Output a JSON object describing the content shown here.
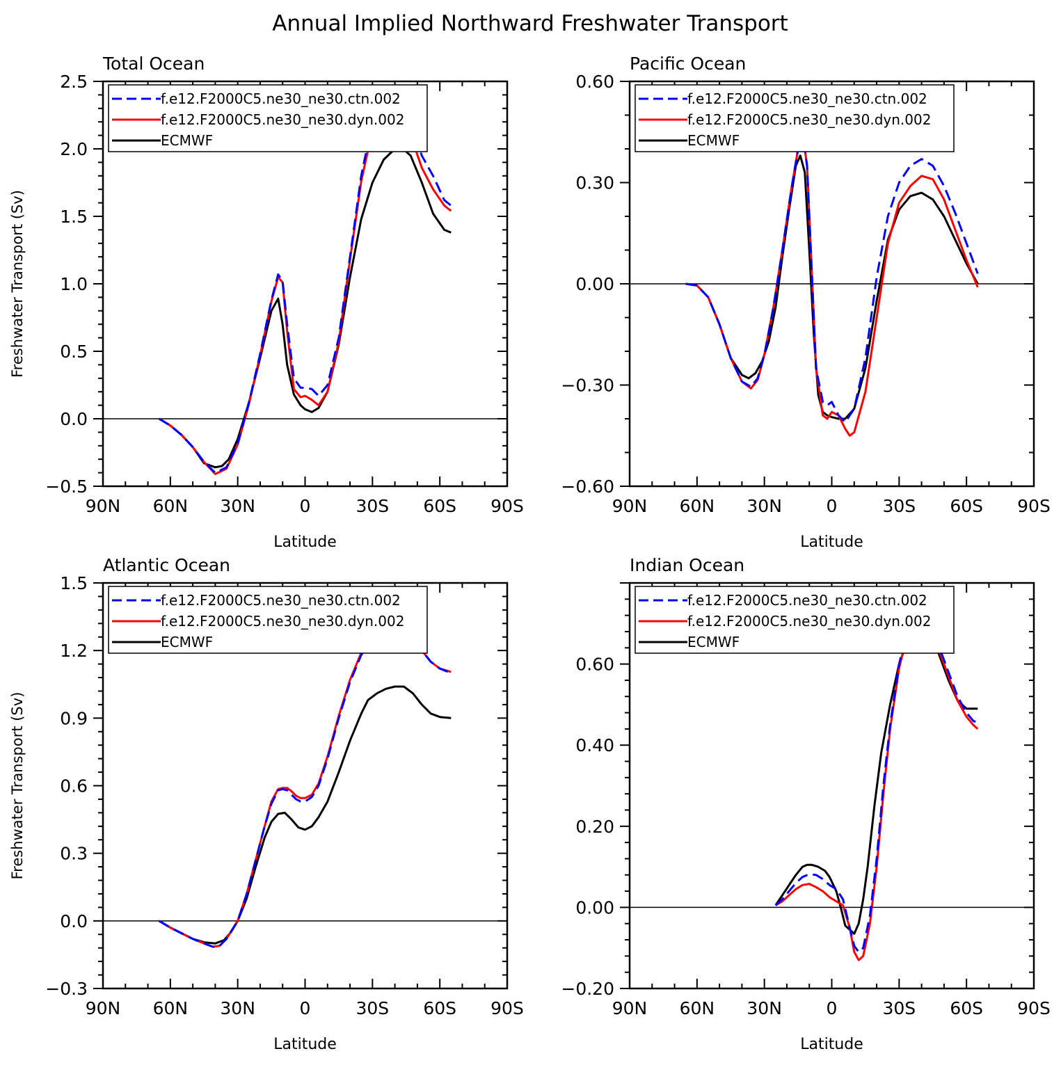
{
  "page_title": "Annual Implied Northward Freshwater Transport",
  "chart_data": [
    {
      "type": "line",
      "title": "Total Ocean",
      "xlabel": "Latitude",
      "ylabel": "Freshwater Transport (Sv)",
      "xlim": [
        90,
        -90
      ],
      "ylim": [
        -0.5,
        2.5
      ],
      "x_ticks": [
        90,
        60,
        30,
        0,
        -30,
        -60,
        -90
      ],
      "x_tick_labels": [
        "90N",
        "60N",
        "30N",
        "0",
        "30S",
        "60S",
        "90S"
      ],
      "y_ticks": [
        -0.5,
        0.0,
        0.5,
        1.0,
        1.5,
        2.0,
        2.5
      ],
      "y_tick_labels": [
        "−0.5",
        "0.0",
        "0.5",
        "1.0",
        "1.5",
        "2.0",
        "2.5"
      ],
      "legend_position": "top-left",
      "series": [
        {
          "name": "f.e12.F2000C5.ne30_ne30.ctn.002",
          "color": "#0000ff",
          "dash": "dashed",
          "x": [
            65,
            60,
            55,
            50,
            45,
            40,
            35,
            30,
            25,
            20,
            15,
            12,
            10,
            8,
            5,
            2,
            0,
            -3,
            -6,
            -10,
            -15,
            -20,
            -25,
            -30,
            -35,
            -40,
            -43,
            -47,
            -52,
            -57,
            -62,
            -65
          ],
          "y": [
            0.0,
            -0.05,
            -0.12,
            -0.21,
            -0.32,
            -0.4,
            -0.36,
            -0.18,
            0.12,
            0.48,
            0.88,
            1.07,
            1.02,
            0.7,
            0.3,
            0.23,
            0.23,
            0.22,
            0.17,
            0.25,
            0.6,
            1.2,
            1.8,
            2.2,
            2.37,
            2.43,
            2.38,
            2.18,
            1.95,
            1.8,
            1.62,
            1.58
          ]
        },
        {
          "name": "f.e12.F2000C5.ne30_ne30.dyn.002",
          "color": "#ff0000",
          "dash": "solid",
          "x": [
            65,
            60,
            55,
            50,
            45,
            40,
            35,
            30,
            25,
            20,
            15,
            12,
            10,
            8,
            5,
            2,
            0,
            -3,
            -6,
            -10,
            -15,
            -20,
            -25,
            -30,
            -35,
            -40,
            -43,
            -47,
            -52,
            -57,
            -62,
            -65
          ],
          "y": [
            0.0,
            -0.05,
            -0.12,
            -0.21,
            -0.32,
            -0.41,
            -0.37,
            -0.19,
            0.11,
            0.47,
            0.87,
            1.05,
            1.01,
            0.65,
            0.22,
            0.16,
            0.17,
            0.14,
            0.1,
            0.2,
            0.57,
            1.18,
            1.76,
            2.14,
            2.33,
            2.39,
            2.33,
            2.1,
            1.86,
            1.7,
            1.58,
            1.54
          ]
        },
        {
          "name": "ECMWF",
          "color": "#000000",
          "dash": "solid",
          "x": [
            65,
            60,
            55,
            50,
            45,
            40,
            37,
            34,
            30,
            25,
            20,
            15,
            12,
            10,
            8,
            5,
            2,
            0,
            -3,
            -6,
            -10,
            -15,
            -20,
            -25,
            -30,
            -35,
            -40,
            -43,
            -47,
            -52,
            -57,
            -62,
            -65
          ],
          "y": [
            0.0,
            -0.05,
            -0.12,
            -0.21,
            -0.33,
            -0.36,
            -0.35,
            -0.3,
            -0.15,
            0.12,
            0.45,
            0.8,
            0.89,
            0.7,
            0.4,
            0.18,
            0.1,
            0.07,
            0.05,
            0.08,
            0.2,
            0.55,
            1.05,
            1.48,
            1.75,
            1.92,
            2.0,
            2.01,
            1.95,
            1.75,
            1.52,
            1.4,
            1.38
          ]
        }
      ]
    },
    {
      "type": "line",
      "title": "Pacific Ocean",
      "xlabel": "Latitude",
      "ylabel": "",
      "xlim": [
        90,
        -90
      ],
      "ylim": [
        -0.6,
        0.6
      ],
      "x_ticks": [
        90,
        60,
        30,
        0,
        -30,
        -60,
        -90
      ],
      "x_tick_labels": [
        "90N",
        "60N",
        "30N",
        "0",
        "30S",
        "60S",
        "90S"
      ],
      "y_ticks": [
        -0.6,
        -0.3,
        0.0,
        0.3,
        0.6
      ],
      "y_tick_labels": [
        "−0.60",
        "−0.30",
        "0.00",
        "0.30",
        "0.60"
      ],
      "legend_position": "top-left",
      "series": [
        {
          "name": "f.e12.F2000C5.ne30_ne30.ctn.002",
          "color": "#0000ff",
          "dash": "dashed",
          "x": [
            65,
            60,
            55,
            50,
            45,
            40,
            36,
            33,
            30,
            26,
            22,
            18,
            15,
            13,
            11,
            9,
            7,
            4,
            2,
            0,
            -3,
            -6,
            -10,
            -15,
            -20,
            -25,
            -30,
            -35,
            -40,
            -45,
            -50,
            -55,
            -60,
            -65
          ],
          "y": [
            0.0,
            -0.005,
            -0.04,
            -0.12,
            -0.22,
            -0.29,
            -0.305,
            -0.28,
            -0.21,
            -0.07,
            0.1,
            0.28,
            0.4,
            0.45,
            0.35,
            0.05,
            -0.25,
            -0.35,
            -0.36,
            -0.35,
            -0.39,
            -0.41,
            -0.37,
            -0.22,
            0.02,
            0.2,
            0.3,
            0.35,
            0.37,
            0.35,
            0.29,
            0.21,
            0.12,
            0.03
          ]
        },
        {
          "name": "f.e12.F2000C5.ne30_ne30.dyn.002",
          "color": "#ff0000",
          "dash": "solid",
          "x": [
            65,
            60,
            55,
            50,
            45,
            40,
            36,
            33,
            30,
            26,
            22,
            18,
            15,
            13,
            11,
            9,
            7,
            4,
            2,
            0,
            -3,
            -6,
            -8,
            -10,
            -15,
            -20,
            -25,
            -30,
            -35,
            -40,
            -45,
            -50,
            -55,
            -60,
            -65
          ],
          "y": [
            0.0,
            -0.005,
            -0.04,
            -0.12,
            -0.22,
            -0.29,
            -0.31,
            -0.285,
            -0.21,
            -0.07,
            0.1,
            0.28,
            0.4,
            0.45,
            0.35,
            0.05,
            -0.25,
            -0.39,
            -0.4,
            -0.38,
            -0.39,
            -0.43,
            -0.45,
            -0.44,
            -0.32,
            -0.1,
            0.12,
            0.24,
            0.29,
            0.32,
            0.31,
            0.25,
            0.16,
            0.07,
            -0.01
          ]
        },
        {
          "name": "ECMWF",
          "color": "#000000",
          "dash": "solid",
          "x": [
            65,
            60,
            55,
            50,
            45,
            40,
            37,
            34,
            31,
            28,
            25,
            22,
            19,
            16,
            14,
            12,
            10,
            8,
            6,
            4,
            2,
            0,
            -3,
            -6,
            -10,
            -15,
            -20,
            -25,
            -30,
            -35,
            -40,
            -45,
            -50,
            -55,
            -60,
            -65
          ],
          "y": [
            0.0,
            -0.005,
            -0.04,
            -0.12,
            -0.22,
            -0.27,
            -0.28,
            -0.265,
            -0.23,
            -0.17,
            -0.07,
            0.08,
            0.22,
            0.35,
            0.38,
            0.33,
            0.1,
            -0.15,
            -0.33,
            -0.38,
            -0.39,
            -0.395,
            -0.4,
            -0.4,
            -0.37,
            -0.25,
            -0.05,
            0.13,
            0.22,
            0.26,
            0.27,
            0.25,
            0.2,
            0.13,
            0.06,
            0.0
          ]
        }
      ]
    },
    {
      "type": "line",
      "title": "Atlantic Ocean",
      "xlabel": "Latitude",
      "ylabel": "Freshwater Transport (Sv)",
      "xlim": [
        90,
        -90
      ],
      "ylim": [
        -0.3,
        1.5
      ],
      "x_ticks": [
        90,
        60,
        30,
        0,
        -30,
        -60,
        -90
      ],
      "x_tick_labels": [
        "90N",
        "60N",
        "30N",
        "0",
        "30S",
        "60S",
        "90S"
      ],
      "y_ticks": [
        -0.3,
        0.0,
        0.3,
        0.6,
        0.9,
        1.2,
        1.5
      ],
      "y_tick_labels": [
        "−0.3",
        "0.0",
        "0.3",
        "0.6",
        "0.9",
        "1.2",
        "1.5"
      ],
      "legend_position": "top-left",
      "series": [
        {
          "name": "f.e12.F2000C5.ne30_ne30.ctn.002",
          "color": "#0000ff",
          "dash": "dashed",
          "x": [
            65,
            60,
            55,
            50,
            45,
            41,
            38,
            35,
            30,
            26,
            22,
            18,
            15,
            12,
            10,
            8,
            6,
            4,
            2,
            0,
            -3,
            -6,
            -10,
            -15,
            -20,
            -25,
            -30,
            -35,
            -40,
            -44,
            -48,
            -52,
            -56,
            -60,
            -65
          ],
          "y": [
            0.0,
            -0.03,
            -0.055,
            -0.08,
            -0.1,
            -0.115,
            -0.11,
            -0.08,
            0.0,
            0.12,
            0.27,
            0.42,
            0.52,
            0.58,
            0.585,
            0.58,
            0.56,
            0.54,
            0.53,
            0.53,
            0.55,
            0.6,
            0.72,
            0.9,
            1.06,
            1.18,
            1.25,
            1.3,
            1.32,
            1.3,
            1.26,
            1.2,
            1.15,
            1.12,
            1.1
          ]
        },
        {
          "name": "f.e12.F2000C5.ne30_ne30.dyn.002",
          "color": "#ff0000",
          "dash": "solid",
          "x": [
            65,
            60,
            55,
            50,
            45,
            41,
            38,
            35,
            30,
            26,
            22,
            18,
            15,
            12,
            10,
            8,
            6,
            4,
            2,
            0,
            -3,
            -6,
            -10,
            -15,
            -20,
            -25,
            -30,
            -35,
            -40,
            -44,
            -48,
            -52,
            -56,
            -60,
            -65
          ],
          "y": [
            0.0,
            -0.03,
            -0.055,
            -0.08,
            -0.1,
            -0.115,
            -0.11,
            -0.08,
            0.0,
            0.12,
            0.27,
            0.42,
            0.53,
            0.585,
            0.59,
            0.59,
            0.575,
            0.555,
            0.545,
            0.545,
            0.56,
            0.61,
            0.73,
            0.91,
            1.07,
            1.19,
            1.27,
            1.31,
            1.33,
            1.31,
            1.26,
            1.2,
            1.15,
            1.12,
            1.105
          ]
        },
        {
          "name": "ECMWF",
          "color": "#000000",
          "dash": "solid",
          "x": [
            65,
            60,
            55,
            50,
            45,
            40,
            36,
            33,
            30,
            26,
            22,
            18,
            15,
            12,
            9,
            6,
            3,
            0,
            -3,
            -6,
            -10,
            -15,
            -20,
            -25,
            -28,
            -32,
            -36,
            -40,
            -44,
            -48,
            -52,
            -56,
            -60,
            -65
          ],
          "y": [
            0.0,
            -0.03,
            -0.055,
            -0.08,
            -0.095,
            -0.1,
            -0.085,
            -0.05,
            0.0,
            0.1,
            0.24,
            0.37,
            0.44,
            0.475,
            0.48,
            0.45,
            0.415,
            0.405,
            0.42,
            0.46,
            0.53,
            0.66,
            0.8,
            0.92,
            0.98,
            1.01,
            1.03,
            1.04,
            1.04,
            1.01,
            0.96,
            0.92,
            0.905,
            0.9
          ]
        }
      ]
    },
    {
      "type": "line",
      "title": "Indian Ocean",
      "xlabel": "Latitude",
      "ylabel": "",
      "xlim": [
        90,
        -90
      ],
      "ylim": [
        -0.2,
        0.8
      ],
      "x_ticks": [
        90,
        60,
        30,
        0,
        -30,
        -60,
        -90
      ],
      "x_tick_labels": [
        "90N",
        "60N",
        "30N",
        "0",
        "30S",
        "60S",
        "90S"
      ],
      "y_ticks": [
        -0.2,
        0.0,
        0.2,
        0.4,
        0.6
      ],
      "y_tick_labels": [
        "−0.20",
        "0.00",
        "0.20",
        "0.40",
        "0.60"
      ],
      "legend_position": "top-left",
      "series": [
        {
          "name": "f.e12.F2000C5.ne30_ne30.ctn.002",
          "color": "#0000ff",
          "dash": "dashed",
          "x": [
            25,
            22,
            19,
            16,
            13,
            10,
            7,
            4,
            1,
            -2,
            -5,
            -8,
            -10,
            -12,
            -14,
            -17,
            -20,
            -23,
            -26,
            -30,
            -34,
            -38,
            -40,
            -42,
            -45,
            -48,
            -52,
            -56,
            -60,
            -63,
            -65
          ],
          "y": [
            0.005,
            0.02,
            0.04,
            0.06,
            0.075,
            0.082,
            0.08,
            0.07,
            0.055,
            0.045,
            0.02,
            -0.05,
            -0.095,
            -0.11,
            -0.1,
            -0.02,
            0.12,
            0.3,
            0.45,
            0.6,
            0.69,
            0.73,
            0.74,
            0.73,
            0.69,
            0.64,
            0.58,
            0.52,
            0.48,
            0.46,
            0.455
          ]
        },
        {
          "name": "f.e12.F2000C5.ne30_ne30.dyn.002",
          "color": "#ff0000",
          "dash": "solid",
          "x": [
            25,
            22,
            19,
            16,
            13,
            10,
            7,
            4,
            1,
            -2,
            -5,
            -8,
            -10,
            -12,
            -14,
            -17,
            -20,
            -23,
            -26,
            -30,
            -34,
            -38,
            -40,
            -42,
            -45,
            -48,
            -52,
            -56,
            -60,
            -63,
            -65
          ],
          "y": [
            0.005,
            0.015,
            0.03,
            0.045,
            0.055,
            0.058,
            0.05,
            0.04,
            0.025,
            0.015,
            0.005,
            -0.05,
            -0.11,
            -0.13,
            -0.12,
            -0.04,
            0.1,
            0.28,
            0.44,
            0.59,
            0.68,
            0.725,
            0.73,
            0.72,
            0.68,
            0.63,
            0.57,
            0.51,
            0.47,
            0.45,
            0.44
          ]
        },
        {
          "name": "ECMWF",
          "color": "#000000",
          "dash": "solid",
          "x": [
            25,
            22,
            19,
            16,
            13,
            11,
            9,
            6,
            3,
            1,
            -2,
            -4,
            -6,
            -8,
            -10,
            -12,
            -14,
            -16,
            -19,
            -22,
            -26,
            -30,
            -34,
            -38,
            -40,
            -42,
            -45,
            -48,
            -52,
            -56,
            -60,
            -63,
            -65
          ],
          "y": [
            0.005,
            0.03,
            0.055,
            0.08,
            0.1,
            0.105,
            0.105,
            0.1,
            0.09,
            0.075,
            0.04,
            0.0,
            -0.045,
            -0.055,
            -0.065,
            -0.04,
            0.02,
            0.1,
            0.25,
            0.38,
            0.5,
            0.6,
            0.66,
            0.7,
            0.705,
            0.7,
            0.67,
            0.62,
            0.56,
            0.51,
            0.49,
            0.49,
            0.49
          ]
        }
      ]
    }
  ]
}
